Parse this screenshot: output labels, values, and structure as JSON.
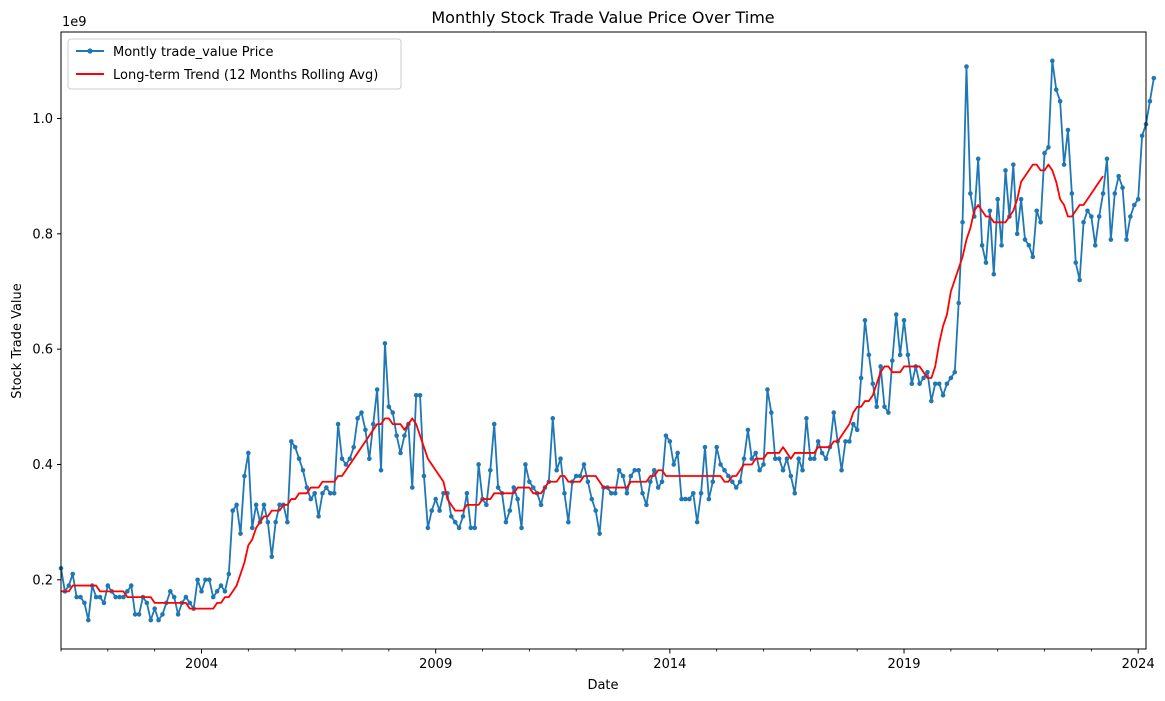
{
  "chart_data": {
    "type": "line",
    "title": "Monthly Stock Trade Value Price Over Time",
    "xlabel": "Date",
    "ylabel": "Stock Trade Value",
    "y_offset_text": "1e9",
    "xlim": [
      "2001-01",
      "2024-03"
    ],
    "ylim": [
      80000000,
      1150000000
    ],
    "x_ticks": [
      {
        "date": "2004-01",
        "label": "2004"
      },
      {
        "date": "2009-01",
        "label": "2009"
      },
      {
        "date": "2014-01",
        "label": "2014"
      },
      {
        "date": "2019-01",
        "label": "2019"
      },
      {
        "date": "2024-01",
        "label": "2024"
      }
    ],
    "y_ticks": [
      {
        "value": 200000000,
        "label": "0.2"
      },
      {
        "value": 400000000,
        "label": "0.4"
      },
      {
        "value": 600000000,
        "label": "0.6"
      },
      {
        "value": 800000000,
        "label": "0.8"
      },
      {
        "value": 1000000000,
        "label": "1.0"
      }
    ],
    "grid": false,
    "legend_position": "upper-left",
    "series": [
      {
        "name": "Montly trade_value Price",
        "color": "#1f77b4",
        "style": "line-with-dots",
        "start": "2001-01",
        "frequency": "monthly",
        "values": [
          0.22,
          0.18,
          0.19,
          0.21,
          0.17,
          0.17,
          0.16,
          0.13,
          0.19,
          0.17,
          0.17,
          0.16,
          0.19,
          0.18,
          0.17,
          0.17,
          0.17,
          0.18,
          0.19,
          0.14,
          0.14,
          0.17,
          0.16,
          0.13,
          0.15,
          0.13,
          0.14,
          0.16,
          0.18,
          0.17,
          0.14,
          0.16,
          0.17,
          0.16,
          0.15,
          0.2,
          0.18,
          0.2,
          0.2,
          0.17,
          0.18,
          0.19,
          0.18,
          0.21,
          0.32,
          0.33,
          0.28,
          0.38,
          0.42,
          0.29,
          0.33,
          0.3,
          0.33,
          0.3,
          0.24,
          0.3,
          0.33,
          0.33,
          0.3,
          0.44,
          0.43,
          0.41,
          0.39,
          0.36,
          0.34,
          0.35,
          0.31,
          0.35,
          0.36,
          0.35,
          0.35,
          0.47,
          0.41,
          0.4,
          0.41,
          0.43,
          0.48,
          0.49,
          0.46,
          0.41,
          0.47,
          0.53,
          0.39,
          0.61,
          0.5,
          0.49,
          0.45,
          0.42,
          0.45,
          0.47,
          0.36,
          0.52,
          0.52,
          0.38,
          0.29,
          0.32,
          0.34,
          0.32,
          0.35,
          0.35,
          0.31,
          0.3,
          0.29,
          0.31,
          0.35,
          0.29,
          0.29,
          0.4,
          0.34,
          0.33,
          0.39,
          0.47,
          0.36,
          0.35,
          0.3,
          0.32,
          0.36,
          0.34,
          0.29,
          0.4,
          0.37,
          0.36,
          0.35,
          0.33,
          0.36,
          0.37,
          0.48,
          0.39,
          0.41,
          0.35,
          0.3,
          0.37,
          0.38,
          0.38,
          0.4,
          0.37,
          0.34,
          0.32,
          0.28,
          0.36,
          0.36,
          0.35,
          0.35,
          0.39,
          0.38,
          0.35,
          0.38,
          0.39,
          0.39,
          0.35,
          0.33,
          0.37,
          0.39,
          0.36,
          0.37,
          0.45,
          0.44,
          0.4,
          0.42,
          0.34,
          0.34,
          0.34,
          0.35,
          0.3,
          0.35,
          0.43,
          0.34,
          0.37,
          0.43,
          0.4,
          0.39,
          0.38,
          0.37,
          0.36,
          0.37,
          0.41,
          0.46,
          0.41,
          0.42,
          0.39,
          0.4,
          0.53,
          0.49,
          0.41,
          0.41,
          0.39,
          0.41,
          0.38,
          0.35,
          0.41,
          0.39,
          0.48,
          0.41,
          0.41,
          0.44,
          0.42,
          0.41,
          0.43,
          0.49,
          0.44,
          0.39,
          0.44,
          0.44,
          0.47,
          0.46,
          0.55,
          0.65,
          0.59,
          0.54,
          0.5,
          0.57,
          0.5,
          0.49,
          0.58,
          0.66,
          0.59,
          0.65,
          0.59,
          0.54,
          0.57,
          0.54,
          0.55,
          0.56,
          0.51,
          0.54,
          0.54,
          0.52,
          0.54,
          0.55,
          0.56,
          0.68,
          0.82,
          1.09,
          0.87,
          0.83,
          0.93,
          0.78,
          0.75,
          0.84,
          0.73,
          0.86,
          0.78,
          0.91,
          0.83,
          0.92,
          0.8,
          0.86,
          0.79,
          0.78,
          0.76,
          0.84,
          0.82,
          0.94,
          0.95,
          1.1,
          1.05,
          1.03,
          0.92,
          0.98,
          0.87,
          0.75,
          0.72,
          0.82,
          0.84,
          0.83,
          0.78,
          0.83,
          0.87,
          0.93,
          0.79,
          0.87,
          0.9,
          0.88,
          0.79,
          0.83,
          0.85,
          0.86,
          0.97,
          0.99,
          1.03,
          1.07
        ]
      },
      {
        "name": "Long-term Trend (12 Months Rolling Avg)",
        "color": "#ff0000",
        "style": "line",
        "start": "2001-01",
        "frequency": "monthly",
        "values": [
          0.18,
          0.18,
          0.18,
          0.19,
          0.19,
          0.19,
          0.19,
          0.19,
          0.19,
          0.19,
          0.18,
          0.18,
          0.18,
          0.18,
          0.18,
          0.18,
          0.18,
          0.17,
          0.17,
          0.17,
          0.17,
          0.17,
          0.17,
          0.17,
          0.16,
          0.16,
          0.16,
          0.16,
          0.16,
          0.16,
          0.16,
          0.16,
          0.16,
          0.15,
          0.15,
          0.15,
          0.15,
          0.15,
          0.15,
          0.15,
          0.16,
          0.16,
          0.17,
          0.17,
          0.18,
          0.19,
          0.21,
          0.23,
          0.26,
          0.27,
          0.29,
          0.3,
          0.31,
          0.31,
          0.32,
          0.32,
          0.32,
          0.33,
          0.33,
          0.34,
          0.34,
          0.35,
          0.35,
          0.35,
          0.36,
          0.36,
          0.36,
          0.37,
          0.37,
          0.37,
          0.37,
          0.38,
          0.38,
          0.39,
          0.4,
          0.41,
          0.42,
          0.43,
          0.44,
          0.45,
          0.46,
          0.47,
          0.47,
          0.48,
          0.48,
          0.47,
          0.47,
          0.47,
          0.46,
          0.47,
          0.48,
          0.47,
          0.45,
          0.43,
          0.41,
          0.4,
          0.39,
          0.38,
          0.37,
          0.34,
          0.33,
          0.32,
          0.32,
          0.32,
          0.33,
          0.33,
          0.33,
          0.33,
          0.34,
          0.34,
          0.34,
          0.35,
          0.35,
          0.35,
          0.35,
          0.35,
          0.35,
          0.36,
          0.36,
          0.36,
          0.36,
          0.35,
          0.35,
          0.35,
          0.36,
          0.37,
          0.37,
          0.37,
          0.38,
          0.38,
          0.37,
          0.37,
          0.37,
          0.37,
          0.38,
          0.38,
          0.38,
          0.38,
          0.37,
          0.36,
          0.36,
          0.36,
          0.36,
          0.36,
          0.36,
          0.36,
          0.37,
          0.37,
          0.37,
          0.37,
          0.37,
          0.38,
          0.38,
          0.39,
          0.39,
          0.38,
          0.38,
          0.38,
          0.38,
          0.38,
          0.38,
          0.38,
          0.38,
          0.38,
          0.38,
          0.38,
          0.38,
          0.38,
          0.38,
          0.38,
          0.37,
          0.37,
          0.38,
          0.38,
          0.39,
          0.4,
          0.4,
          0.4,
          0.41,
          0.41,
          0.41,
          0.42,
          0.42,
          0.42,
          0.42,
          0.43,
          0.42,
          0.41,
          0.42,
          0.42,
          0.42,
          0.42,
          0.42,
          0.42,
          0.43,
          0.43,
          0.43,
          0.43,
          0.44,
          0.44,
          0.45,
          0.46,
          0.47,
          0.49,
          0.5,
          0.5,
          0.51,
          0.51,
          0.52,
          0.54,
          0.56,
          0.57,
          0.57,
          0.56,
          0.56,
          0.56,
          0.57,
          0.57,
          0.57,
          0.57,
          0.57,
          0.56,
          0.55,
          0.55,
          0.57,
          0.61,
          0.64,
          0.66,
          0.7,
          0.72,
          0.74,
          0.76,
          0.79,
          0.81,
          0.84,
          0.85,
          0.84,
          0.83,
          0.83,
          0.82,
          0.82,
          0.82,
          0.82,
          0.83,
          0.84,
          0.86,
          0.89,
          0.9,
          0.91,
          0.92,
          0.92,
          0.91,
          0.91,
          0.92,
          0.91,
          0.89,
          0.86,
          0.85,
          0.83,
          0.83,
          0.84,
          0.85,
          0.85,
          0.86,
          0.87,
          0.88,
          0.89,
          0.9
        ]
      }
    ]
  }
}
